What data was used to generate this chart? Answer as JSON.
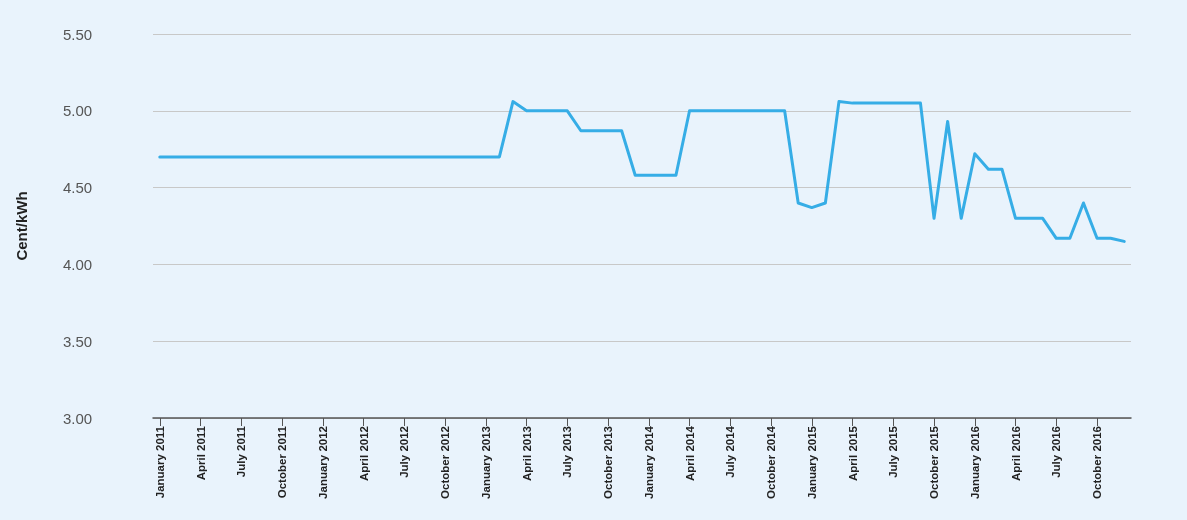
{
  "chart_data": {
    "type": "line",
    "ylabel": "Cent/kWh",
    "categories": [
      "January 2011",
      null,
      null,
      "April 2011",
      null,
      null,
      "July 2011",
      null,
      null,
      "October 2011",
      null,
      null,
      "January 2012",
      null,
      null,
      "April 2012",
      null,
      null,
      "July 2012",
      null,
      null,
      "October 2012",
      null,
      null,
      "January 2013",
      null,
      null,
      "April 2013",
      null,
      null,
      "July 2013",
      null,
      null,
      "October 2013",
      null,
      null,
      "January 2014",
      null,
      null,
      "April 2014",
      null,
      null,
      "July 2014",
      null,
      null,
      "October 2014",
      null,
      null,
      "January 2015",
      null,
      null,
      "April 2015",
      null,
      null,
      "July 2015",
      null,
      null,
      "October 2015",
      null,
      null,
      "January 2016",
      null,
      null,
      "April 2016",
      null,
      null,
      "July 2016",
      null,
      null,
      "October 2016",
      null,
      null
    ],
    "series": [
      {
        "color": "#36ade6",
        "values": [
          4.7,
          4.7,
          4.7,
          4.7,
          4.7,
          4.7,
          4.7,
          4.7,
          4.7,
          4.7,
          4.7,
          4.7,
          4.7,
          4.7,
          4.7,
          4.7,
          4.7,
          4.7,
          4.7,
          4.7,
          4.7,
          4.7,
          4.7,
          4.7,
          4.7,
          4.7,
          5.06,
          5.0,
          5.0,
          5.0,
          5.0,
          4.87,
          4.87,
          4.87,
          4.87,
          4.58,
          4.58,
          4.58,
          4.58,
          5.0,
          5.0,
          5.0,
          5.0,
          5.0,
          5.0,
          5.0,
          5.0,
          4.4,
          4.37,
          4.4,
          5.06,
          5.05,
          5.05,
          5.05,
          5.05,
          5.05,
          5.05,
          4.3,
          4.93,
          4.3,
          4.72,
          4.62,
          4.62,
          4.3,
          4.3,
          4.3,
          4.17,
          4.17,
          4.4,
          4.17,
          4.17,
          4.15
        ]
      }
    ],
    "ylim": [
      3.0,
      5.5
    ],
    "yticks": [
      {
        "value": 3.0,
        "label": "3.00"
      },
      {
        "value": 3.5,
        "label": "3.50"
      },
      {
        "value": 4.0,
        "label": "4.00"
      },
      {
        "value": 4.5,
        "label": "4.50"
      },
      {
        "value": 5.0,
        "label": "5.00"
      },
      {
        "value": 5.5,
        "label": "5.50"
      }
    ],
    "grid": "y",
    "marker": "none",
    "line_style": "solid"
  }
}
